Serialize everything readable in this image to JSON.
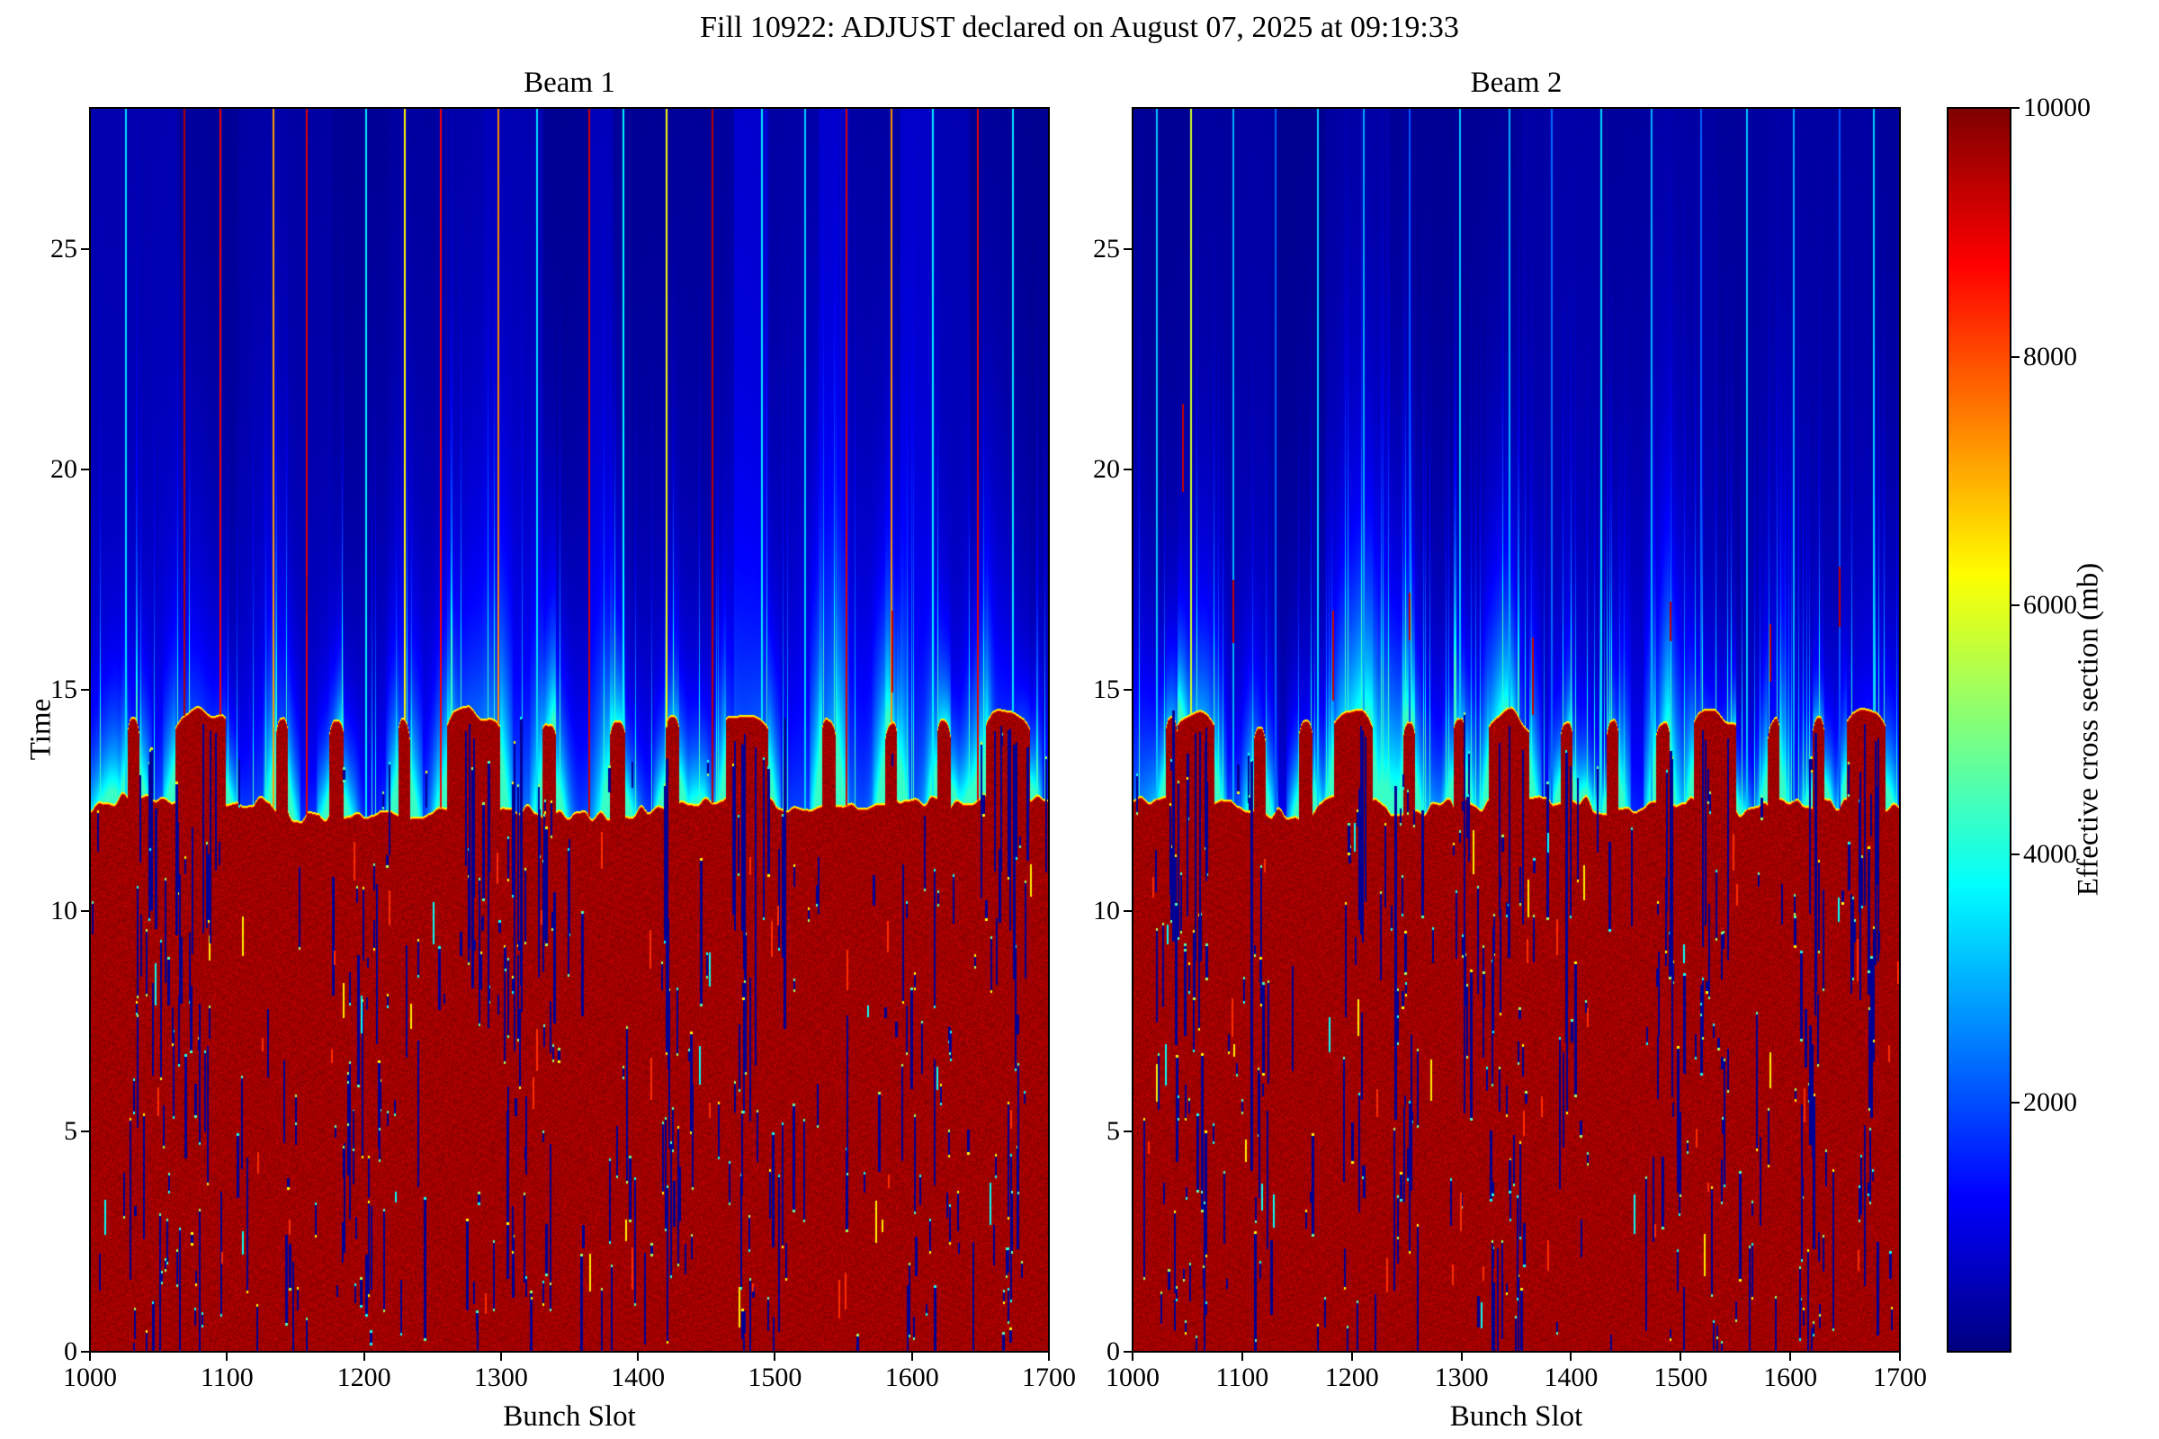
{
  "figure": {
    "title": "Fill 10922: ADJUST declared on August 07, 2025 at 09:19:33",
    "background": "#ffffff"
  },
  "colorbar": {
    "label": "Effective cross section (mb)",
    "ticks": [
      2000,
      4000,
      6000,
      8000,
      10000
    ],
    "vmin": 0,
    "vmax": 10000,
    "colormap": "jet",
    "top_color": "#800000",
    "bottom_color": "#000080"
  },
  "chart_data": [
    {
      "type": "heatmap",
      "title": "Beam 1",
      "xlabel": "Bunch Slot",
      "ylabel": "Time",
      "x_range": [
        1000,
        1700
      ],
      "y_range": [
        0,
        28.2
      ],
      "t_max": 28.2,
      "x_ticks": [
        1000,
        1100,
        1200,
        1300,
        1400,
        1500,
        1600,
        1700
      ],
      "y_ticks": [
        0,
        5,
        10,
        15,
        20,
        25
      ],
      "value_range": [
        0,
        10000
      ],
      "colormap": "jet",
      "regions": {
        "saturated_high": "time 0 to ~12.3: cross section saturated ~10000 mb (dark red) with sparse low-value (dark blue) bunch streaks",
        "injection_band": "time ~12.3 to ~14.45: red bunch-train towers with yellow fringes over cyan-to-blue decaying background",
        "collision_low": "time ~14.5 to 28.2: low cross section ~150-900 mb (dark blue trains) with isolated hot bunches"
      },
      "structure": {
        "seed": 10922,
        "band_strength": 1.0,
        "glow_mult": 1.0,
        "streak_p": 0.05,
        "sea": {
          "t_top": 12.35,
          "value": 9700
        },
        "towers": [
          {
            "f": 0.045,
            "w": 12,
            "h": 14.3
          },
          {
            "f": 0.115,
            "w": 55,
            "h": 14.45
          },
          {
            "f": 0.2,
            "w": 12,
            "h": 14.3
          },
          {
            "f": 0.257,
            "w": 15,
            "h": 14.35
          },
          {
            "f": 0.327,
            "w": 12,
            "h": 14.28
          },
          {
            "f": 0.4,
            "w": 58,
            "h": 14.45
          },
          {
            "f": 0.478,
            "w": 14,
            "h": 14.32
          },
          {
            "f": 0.55,
            "w": 16,
            "h": 14.35
          },
          {
            "f": 0.607,
            "w": 14,
            "h": 14.3
          },
          {
            "f": 0.685,
            "w": 46,
            "h": 14.42
          },
          {
            "f": 0.77,
            "w": 14,
            "h": 14.3
          },
          {
            "f": 0.835,
            "w": 12,
            "h": 14.28
          },
          {
            "f": 0.89,
            "w": 14,
            "h": 14.32
          },
          {
            "f": 0.957,
            "w": 48,
            "h": 14.42
          }
        ],
        "hot_lines": [
          {
            "f": 0.037,
            "v": 3400
          },
          {
            "f": 0.098,
            "v": 9500
          },
          {
            "f": 0.135,
            "v": 8800
          },
          {
            "f": 0.19,
            "v": 7200
          },
          {
            "f": 0.225,
            "v": 9000
          },
          {
            "f": 0.287,
            "v": 3600
          },
          {
            "f": 0.327,
            "v": 6300
          },
          {
            "f": 0.365,
            "v": 8800
          },
          {
            "f": 0.425,
            "v": 7400
          },
          {
            "f": 0.465,
            "v": 3400
          },
          {
            "f": 0.52,
            "v": 9200
          },
          {
            "f": 0.555,
            "v": 3700
          },
          {
            "f": 0.6,
            "v": 6200
          },
          {
            "f": 0.648,
            "v": 9400
          },
          {
            "f": 0.7,
            "v": 3500
          },
          {
            "f": 0.745,
            "v": 3300
          },
          {
            "f": 0.788,
            "v": 9100
          },
          {
            "f": 0.835,
            "v": 7300
          },
          {
            "f": 0.878,
            "v": 3600
          },
          {
            "f": 0.925,
            "v": 9000
          },
          {
            "f": 0.962,
            "v": 3500
          }
        ],
        "red_stubs": [
          {
            "f": 0.225,
            "t": 17.6
          },
          {
            "f": 0.52,
            "t": 16.3
          },
          {
            "f": 0.836,
            "t": 16.8
          }
        ],
        "dash_clusters": [
          0.055,
          0.09,
          0.115,
          0.27,
          0.3,
          0.4,
          0.44,
          0.47,
          0.6,
          0.685,
          0.72,
          0.86,
          0.9,
          0.955
        ],
        "dash_count": 340,
        "streak_count": 50,
        "crosser_count": 10
      }
    },
    {
      "type": "heatmap",
      "title": "Beam 2",
      "xlabel": "Bunch Slot",
      "ylabel": "",
      "x_range": [
        1000,
        1700
      ],
      "y_range": [
        0,
        28.2
      ],
      "t_max": 28.2,
      "x_ticks": [
        1000,
        1100,
        1200,
        1300,
        1400,
        1500,
        1600,
        1700
      ],
      "y_ticks": [
        0,
        5,
        10,
        15,
        20,
        25
      ],
      "value_range": [
        0,
        10000
      ],
      "colormap": "jet",
      "regions": {
        "saturated_high": "time 0 to ~12.3: cross section saturated ~10000 mb (dark red) with sparse low-value (dark blue) bunch streaks",
        "injection_band": "time ~12.3 to ~14.45: red bunch-train towers with yellow fringes over cyan-to-blue decaying background",
        "collision_low": "time ~14.5 to 28.2: low cross section, more uniform dark blue than Beam 1, thin cyan hot-bunch lines and short red segments near time 16-21"
      },
      "structure": {
        "seed": 20922,
        "band_strength": 0.45,
        "glow_mult": 0.85,
        "streak_p": 0.09,
        "sea": {
          "t_top": 12.35,
          "value": 9700
        },
        "towers": [
          {
            "f": 0.05,
            "w": 12,
            "h": 14.3
          },
          {
            "f": 0.082,
            "w": 40,
            "h": 14.4
          },
          {
            "f": 0.165,
            "w": 12,
            "h": 14.28
          },
          {
            "f": 0.225,
            "w": 14,
            "h": 14.34
          },
          {
            "f": 0.287,
            "w": 42,
            "h": 14.42
          },
          {
            "f": 0.36,
            "w": 12,
            "h": 14.28
          },
          {
            "f": 0.425,
            "w": 12,
            "h": 14.3
          },
          {
            "f": 0.49,
            "w": 44,
            "h": 14.42
          },
          {
            "f": 0.565,
            "w": 12,
            "h": 14.3
          },
          {
            "f": 0.625,
            "w": 12,
            "h": 14.28
          },
          {
            "f": 0.69,
            "w": 14,
            "h": 14.32
          },
          {
            "f": 0.758,
            "w": 46,
            "h": 14.42
          },
          {
            "f": 0.835,
            "w": 12,
            "h": 14.28
          },
          {
            "f": 0.893,
            "w": 12,
            "h": 14.3
          },
          {
            "f": 0.955,
            "w": 42,
            "h": 14.4
          }
        ],
        "hot_lines": [
          {
            "f": 0.03,
            "v": 3200
          },
          {
            "f": 0.075,
            "v": 5800
          },
          {
            "f": 0.13,
            "v": 3000
          },
          {
            "f": 0.185,
            "v": 2200
          },
          {
            "f": 0.24,
            "v": 3300
          },
          {
            "f": 0.3,
            "v": 2900
          },
          {
            "f": 0.36,
            "v": 2100
          },
          {
            "f": 0.425,
            "v": 3200
          },
          {
            "f": 0.49,
            "v": 3000
          },
          {
            "f": 0.545,
            "v": 2300
          },
          {
            "f": 0.61,
            "v": 3400
          },
          {
            "f": 0.675,
            "v": 3000
          },
          {
            "f": 0.74,
            "v": 2200
          },
          {
            "f": 0.8,
            "v": 3200
          },
          {
            "f": 0.86,
            "v": 2900
          },
          {
            "f": 0.92,
            "v": 2100
          },
          {
            "f": 0.965,
            "v": 3300
          }
        ],
        "red_stubs": [
          {
            "f": 0.065,
            "t": 21.5
          },
          {
            "f": 0.13,
            "t": 17.5
          },
          {
            "f": 0.26,
            "t": 16.8
          },
          {
            "f": 0.36,
            "t": 17.2
          },
          {
            "f": 0.52,
            "t": 16.2
          },
          {
            "f": 0.7,
            "t": 17.0
          },
          {
            "f": 0.83,
            "t": 16.5
          },
          {
            "f": 0.92,
            "t": 17.8
          }
        ],
        "dash_clusters": [
          0.06,
          0.082,
          0.16,
          0.287,
          0.35,
          0.44,
          0.49,
          0.57,
          0.7,
          0.758,
          0.88,
          0.955
        ],
        "dash_count": 310,
        "streak_count": 46,
        "crosser_count": 9
      }
    }
  ]
}
